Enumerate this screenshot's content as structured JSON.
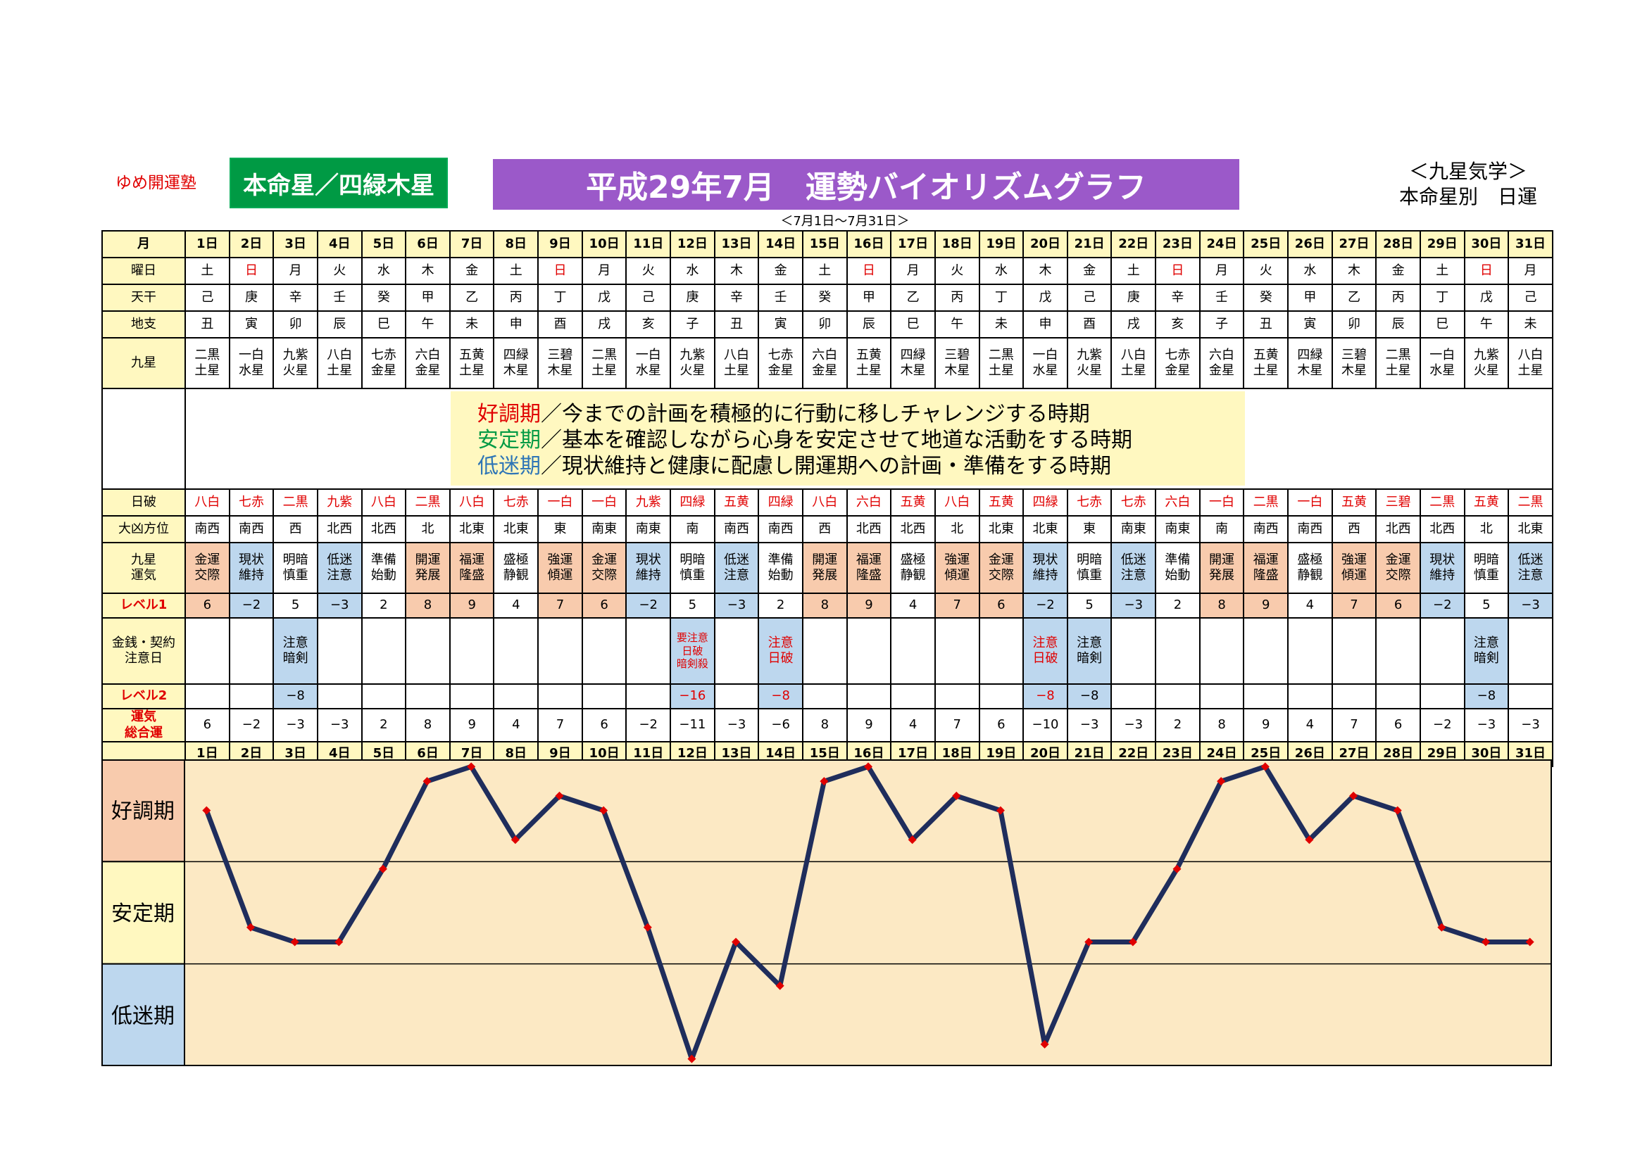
{
  "header": {
    "school": "ゆめ開運塾",
    "honmei": "本命星／四緑木星",
    "title": "平成29年7月　運勢バイオリズムグラフ",
    "kyusei_line1": "＜九星気学＞",
    "kyusei_line2": "本命星別　日運",
    "period": "＜7月1日～7月31日＞"
  },
  "row_labels": {
    "month": "月",
    "weekday": "曜日",
    "tenkan": "天干",
    "chishi": "地支",
    "kyusei": "九星",
    "nippa": "日破",
    "daikyo": "大凶方位",
    "unki_1": "九星",
    "unki_2": "運気",
    "level1": "レベル1",
    "kinsen_1": "金銭・契約",
    "kinsen_2": "注意日",
    "level2": "レベル2",
    "sogo_1": "運気",
    "sogo_2": "総合運"
  },
  "legend": [
    {
      "key": "好調期",
      "text": "／今までの計画を積極的に行動に移しチャレンジする時期"
    },
    {
      "key": "安定期",
      "text": "／基本を確認しながら心身を安定させて地道な活動をする時期"
    },
    {
      "key": "低迷期",
      "text": "／現状維持と健康に配慮し開運期への計画・準備をする時期"
    }
  ],
  "days": [
    "1日",
    "2日",
    "3日",
    "4日",
    "5日",
    "6日",
    "7日",
    "8日",
    "9日",
    "10日",
    "11日",
    "12日",
    "13日",
    "14日",
    "15日",
    "16日",
    "17日",
    "18日",
    "19日",
    "20日",
    "21日",
    "22日",
    "23日",
    "24日",
    "25日",
    "26日",
    "27日",
    "28日",
    "29日",
    "30日",
    "31日"
  ],
  "weekday": [
    "土",
    "日",
    "月",
    "火",
    "水",
    "木",
    "金",
    "土",
    "日",
    "月",
    "火",
    "水",
    "木",
    "金",
    "土",
    "日",
    "月",
    "火",
    "水",
    "木",
    "金",
    "土",
    "日",
    "月",
    "火",
    "水",
    "木",
    "金",
    "土",
    "日",
    "月"
  ],
  "tenkan": [
    "己",
    "庚",
    "辛",
    "壬",
    "癸",
    "甲",
    "乙",
    "丙",
    "丁",
    "戊",
    "己",
    "庚",
    "辛",
    "壬",
    "癸",
    "甲",
    "乙",
    "丙",
    "丁",
    "戊",
    "己",
    "庚",
    "辛",
    "壬",
    "癸",
    "甲",
    "乙",
    "丙",
    "丁",
    "戊",
    "己"
  ],
  "chishi": [
    "丑",
    "寅",
    "卯",
    "辰",
    "巳",
    "午",
    "未",
    "申",
    "酉",
    "戌",
    "亥",
    "子",
    "丑",
    "寅",
    "卯",
    "辰",
    "巳",
    "午",
    "未",
    "申",
    "酉",
    "戌",
    "亥",
    "子",
    "丑",
    "寅",
    "卯",
    "辰",
    "巳",
    "午",
    "未"
  ],
  "kyusei_a": [
    "二黒",
    "一白",
    "九紫",
    "八白",
    "七赤",
    "六白",
    "五黄",
    "四緑",
    "三碧",
    "二黒",
    "一白",
    "九紫",
    "八白",
    "七赤",
    "六白",
    "五黄",
    "四緑",
    "三碧",
    "二黒",
    "一白",
    "九紫",
    "八白",
    "七赤",
    "六白",
    "五黄",
    "四緑",
    "三碧",
    "二黒",
    "一白",
    "九紫",
    "八白"
  ],
  "kyusei_b": [
    "土星",
    "水星",
    "火星",
    "土星",
    "金星",
    "金星",
    "土星",
    "木星",
    "木星",
    "土星",
    "水星",
    "火星",
    "土星",
    "金星",
    "金星",
    "土星",
    "木星",
    "木星",
    "土星",
    "水星",
    "火星",
    "土星",
    "金星",
    "金星",
    "土星",
    "木星",
    "木星",
    "土星",
    "水星",
    "火星",
    "土星"
  ],
  "nippa": [
    "八白",
    "七赤",
    "二黒",
    "九紫",
    "八白",
    "二黒",
    "八白",
    "七赤",
    "一白",
    "一白",
    "九紫",
    "四緑",
    "五黄",
    "四緑",
    "八白",
    "六白",
    "五黄",
    "八白",
    "五黄",
    "四緑",
    "七赤",
    "七赤",
    "六白",
    "一白",
    "二黒",
    "一白",
    "五黄",
    "三碧",
    "二黒",
    "五黄",
    "二黒"
  ],
  "daikyo": [
    "南西",
    "南西",
    "西",
    "北西",
    "北西",
    "北",
    "北東",
    "北東",
    "東",
    "南東",
    "南東",
    "南",
    "南西",
    "南西",
    "西",
    "北西",
    "北西",
    "北",
    "北東",
    "北東",
    "東",
    "南東",
    "南東",
    "南",
    "南西",
    "南西",
    "西",
    "北西",
    "北西",
    "北",
    "北東"
  ],
  "unki_a": [
    "金運",
    "現状",
    "明暗",
    "低迷",
    "準備",
    "開運",
    "福運",
    "盛極",
    "強運",
    "金運",
    "現状",
    "明暗",
    "低迷",
    "準備",
    "開運",
    "福運",
    "盛極",
    "強運",
    "金運",
    "現状",
    "明暗",
    "低迷",
    "準備",
    "開運",
    "福運",
    "盛極",
    "強運",
    "金運",
    "現状",
    "明暗",
    "低迷"
  ],
  "unki_b": [
    "交際",
    "維持",
    "慎重",
    "注意",
    "始動",
    "発展",
    "隆盛",
    "静観",
    "傾運",
    "交際",
    "維持",
    "慎重",
    "注意",
    "始動",
    "発展",
    "隆盛",
    "静観",
    "傾運",
    "交際",
    "維持",
    "慎重",
    "注意",
    "始動",
    "発展",
    "隆盛",
    "静観",
    "傾運",
    "交際",
    "維持",
    "慎重",
    "注意"
  ],
  "level1": [
    "6",
    "−2",
    "5",
    "−3",
    "2",
    "8",
    "9",
    "4",
    "7",
    "6",
    "−2",
    "5",
    "−3",
    "2",
    "8",
    "9",
    "4",
    "7",
    "6",
    "−2",
    "5",
    "−3",
    "2",
    "8",
    "9",
    "4",
    "7",
    "6",
    "−2",
    "5",
    "−3"
  ],
  "kinsen": [
    "",
    "",
    "注意|暗剣",
    "",
    "",
    "",
    "",
    "",
    "",
    "",
    "",
    "要注意|日破|暗剣殺",
    "",
    "注意|日破",
    "",
    "",
    "",
    "",
    "",
    "注意|日破",
    "注意|暗剣",
    "",
    "",
    "",
    "",
    "",
    "",
    "",
    "",
    "注意|暗剣",
    ""
  ],
  "level2": [
    "",
    "",
    "−8",
    "",
    "",
    "",
    "",
    "",
    "",
    "",
    "",
    "−16",
    "",
    "−8",
    "",
    "",
    "",
    "",
    "",
    "−8",
    "−8",
    "",
    "",
    "",
    "",
    "",
    "",
    "",
    "",
    "−8",
    ""
  ],
  "sogo": [
    "6",
    "−2",
    "−3",
    "−3",
    "2",
    "8",
    "9",
    "4",
    "7",
    "6",
    "−2",
    "−11",
    "−3",
    "−6",
    "8",
    "9",
    "4",
    "7",
    "6",
    "−10",
    "−3",
    "−3",
    "2",
    "8",
    "9",
    "4",
    "7",
    "6",
    "−2",
    "−3",
    "−3"
  ],
  "chart_data": {
    "type": "line",
    "categories": [
      "1日",
      "2日",
      "3日",
      "4日",
      "5日",
      "6日",
      "7日",
      "8日",
      "9日",
      "10日",
      "11日",
      "12日",
      "13日",
      "14日",
      "15日",
      "16日",
      "17日",
      "18日",
      "19日",
      "20日",
      "21日",
      "22日",
      "23日",
      "24日",
      "25日",
      "26日",
      "27日",
      "28日",
      "29日",
      "30日",
      "31日"
    ],
    "values": [
      6,
      -2,
      -3,
      -3,
      2,
      8,
      9,
      4,
      7,
      6,
      -2,
      -11,
      -3,
      -6,
      8,
      9,
      4,
      7,
      6,
      -10,
      -3,
      -3,
      2,
      8,
      9,
      4,
      7,
      6,
      -2,
      -3,
      -3
    ],
    "bands": [
      "好調期",
      "安定期",
      "低迷期"
    ],
    "band_colors": [
      "#f8cbad",
      "#fff8c0",
      "#bdd7ee"
    ],
    "plot_bg": "#fce9c4",
    "line_color": "#1f2d5c",
    "marker_color": "#e00000",
    "ylim": [
      -11.5,
      9.5
    ]
  }
}
